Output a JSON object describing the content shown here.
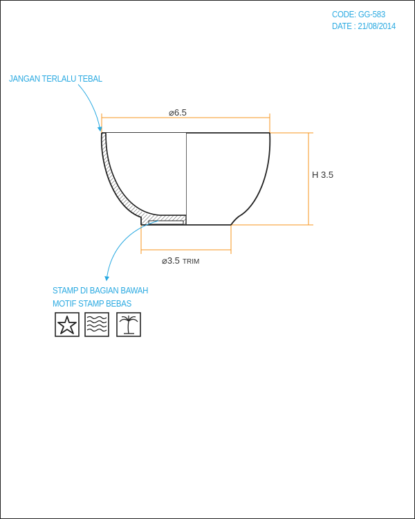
{
  "header": {
    "code": "CODE: GG-583",
    "date": "DATE : 21/08/2014"
  },
  "notes": {
    "wall_warning": "JANGAN TERLALU TEBAL",
    "stamp_location": "STAMP DI BAGIAN BAWAH",
    "stamp_motif": "MOTIF STAMP BEBAS"
  },
  "dimensions": {
    "diameter_symbol": "⌀",
    "top_diameter": "6.5",
    "foot_diameter": "3.5",
    "foot_suffix": "TRIM",
    "height": "H 3.5"
  },
  "stamps": [
    {
      "icon": "starfish-icon"
    },
    {
      "icon": "waves-icon"
    },
    {
      "icon": "palm-tree-icon"
    }
  ],
  "colors": {
    "annotation": "#29a9e1",
    "dimension_line": "#f7941d",
    "outline": "#222222"
  }
}
